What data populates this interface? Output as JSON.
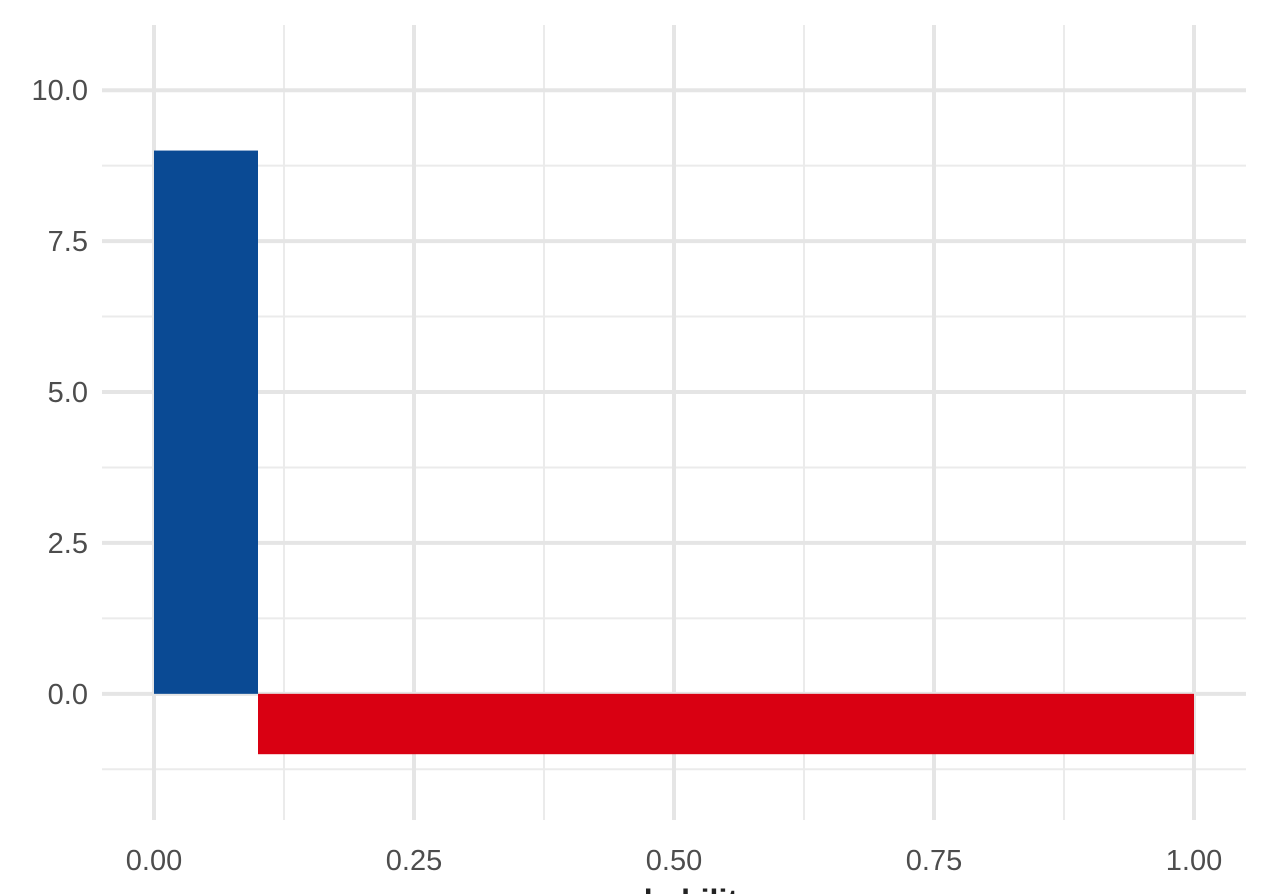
{
  "chart_data": {
    "type": "rect",
    "x_label": "probability",
    "xlim": [
      -0.05,
      1.05
    ],
    "ylim": [
      -2.09,
      11.08
    ],
    "xticks": [
      {
        "value": 0,
        "label": "0.00"
      },
      0.25,
      {
        "value": 0.5,
        "label": "0.50"
      },
      0.75,
      {
        "value": 1,
        "label": "1.00"
      }
    ],
    "yticks": [
      {
        "value": 0,
        "label": "0.0"
      },
      2.5,
      {
        "value": 5,
        "label": "5.0"
      },
      7.5,
      {
        "value": 10,
        "label": "10.0"
      }
    ],
    "x_minor_ticks": [
      0.125,
      0.375,
      0.625,
      0.875
    ],
    "y_minor_ticks": [
      -1.25,
      1.25,
      3.75,
      6.25,
      8.75
    ],
    "grid": true,
    "rects": [
      {
        "x": [
          0,
          0.1
        ],
        "y": [
          0,
          9
        ],
        "color": "#0a4a94"
      },
      {
        "x": [
          0.1,
          1
        ],
        "y": [
          -1,
          0
        ],
        "color": "#d90012"
      }
    ]
  }
}
